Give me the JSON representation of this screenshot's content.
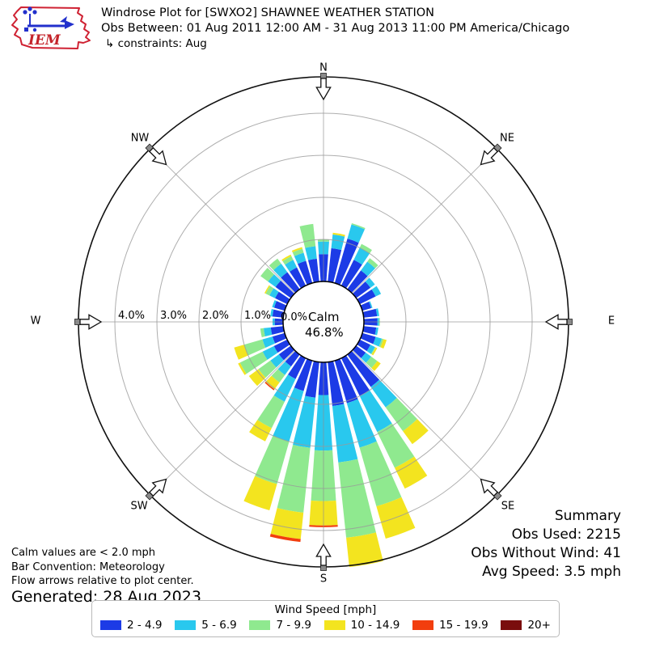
{
  "header": {
    "logo_text": "IEM",
    "title": "Windrose Plot for [SWXO2] SHAWNEE WEATHER STATION",
    "subtitle": "Obs Between: 01 Aug 2011 12:00 AM - 31 Aug 2013 11:00 PM America/Chicago",
    "constraints": "↳ constraints: Aug"
  },
  "plot": {
    "compass_labels": [
      "N",
      "NE",
      "E",
      "SE",
      "S",
      "SW",
      "W",
      "NW"
    ],
    "center": {
      "zero_label": "0.0%",
      "calm_label": "Calm",
      "calm_value": "46.8%"
    }
  },
  "summary": {
    "title": "Summary",
    "obs_used": "Obs Used: 2215",
    "obs_without_wind": "Obs Without Wind: 41",
    "avg_speed": "Avg Speed: 3.5 mph"
  },
  "notes": {
    "calm": "Calm values are < 2.0 mph",
    "convention": "Bar Convention: Meteorology",
    "arrows": "Flow arrows relative to plot center.",
    "generated": "Generated: 28 Aug 2023"
  },
  "legend": {
    "title": "Wind Speed [mph]"
  },
  "chart_data": {
    "type": "windrose",
    "units": "percent_frequency",
    "direction_step_deg": 10,
    "bar_width_deg": 8,
    "rings": [
      {
        "pct": 1,
        "label": "1.0%"
      },
      {
        "pct": 2,
        "label": "2.0%"
      },
      {
        "pct": 3,
        "label": "3.0%"
      },
      {
        "pct": 4,
        "label": "4.0%"
      }
    ],
    "zero_ring_label": "0.0%",
    "boundary_pct": 4.85,
    "calm_percent": 46.8,
    "speed_bins": [
      {
        "label": "2 - 4.9",
        "color": "#1c3be6"
      },
      {
        "label": "5 - 6.9",
        "color": "#29c8ee"
      },
      {
        "label": "7 - 9.9",
        "color": "#8fe98f"
      },
      {
        "label": "10 - 14.9",
        "color": "#f3e41f"
      },
      {
        "label": "15 - 19.9",
        "color": "#f23e0e"
      },
      {
        "label": "20+",
        "color": "#7a0d0d"
      }
    ],
    "directions_deg": [
      0,
      10,
      20,
      30,
      40,
      50,
      60,
      70,
      80,
      90,
      100,
      110,
      120,
      130,
      140,
      150,
      160,
      170,
      180,
      190,
      200,
      210,
      220,
      230,
      240,
      250,
      260,
      270,
      280,
      290,
      300,
      310,
      320,
      330,
      340,
      350
    ],
    "values_pct": [
      [
        0.65,
        0.3,
        0.05,
        0,
        0,
        0
      ],
      [
        0.8,
        0.33,
        0.0,
        0.04,
        0,
        0
      ],
      [
        1.1,
        0.35,
        0.03,
        0,
        0,
        0
      ],
      [
        0.68,
        0.32,
        0.1,
        0,
        0,
        0
      ],
      [
        0.55,
        0.26,
        0.1,
        0,
        0,
        0
      ],
      [
        0.42,
        0.13,
        0,
        0,
        0,
        0
      ],
      [
        0.42,
        0.14,
        0,
        0,
        0,
        0
      ],
      [
        0.22,
        0.03,
        0,
        0,
        0,
        0
      ],
      [
        0.32,
        0.05,
        0,
        0,
        0,
        0
      ],
      [
        0.32,
        0.04,
        0.02,
        0,
        0,
        0
      ],
      [
        0.3,
        0.05,
        0,
        0,
        0,
        0
      ],
      [
        0.33,
        0.15,
        0.04,
        0.08,
        0,
        0
      ],
      [
        0.28,
        0.12,
        0.02,
        0.04,
        0,
        0
      ],
      [
        0.28,
        0.16,
        0.18,
        0.1,
        0,
        0
      ],
      [
        0.95,
        0.6,
        0.7,
        0.38,
        0,
        0
      ],
      [
        1.0,
        0.95,
        0.95,
        0.55,
        0,
        0
      ],
      [
        1.05,
        1.1,
        1.45,
        0.8,
        0,
        0
      ],
      [
        1.05,
        1.35,
        1.8,
        0.7,
        0,
        0
      ],
      [
        0.78,
        1.32,
        1.2,
        0.58,
        0.04,
        0
      ],
      [
        0.85,
        1.2,
        1.55,
        0.63,
        0.07,
        0
      ],
      [
        0.75,
        1.25,
        1.05,
        0.65,
        0,
        0
      ],
      [
        0.55,
        0.6,
        0.7,
        0.35,
        0,
        0
      ],
      [
        0.35,
        0.25,
        0.22,
        0.2,
        0.03,
        0
      ],
      [
        0.35,
        0.25,
        0.35,
        0.28,
        0,
        0
      ],
      [
        0.35,
        0.3,
        0.6,
        0.05,
        0,
        0
      ],
      [
        0.3,
        0.25,
        0.45,
        0.25,
        0,
        0
      ],
      [
        0.3,
        0.17,
        0.08,
        0,
        0,
        0
      ],
      [
        0.2,
        0.05,
        0,
        0,
        0,
        0
      ],
      [
        0.26,
        0.05,
        0,
        0,
        0,
        0
      ],
      [
        0.26,
        0.05,
        0,
        0,
        0,
        0
      ],
      [
        0.32,
        0.15,
        0.1,
        0.03,
        0,
        0
      ],
      [
        0.45,
        0.22,
        0.22,
        0,
        0,
        0
      ],
      [
        0.5,
        0.25,
        0.15,
        0,
        0,
        0
      ],
      [
        0.48,
        0.2,
        0.1,
        0.04,
        0,
        0
      ],
      [
        0.55,
        0.2,
        0.1,
        0.04,
        0,
        0
      ],
      [
        0.55,
        0.3,
        0.53,
        0,
        0,
        0
      ]
    ]
  }
}
